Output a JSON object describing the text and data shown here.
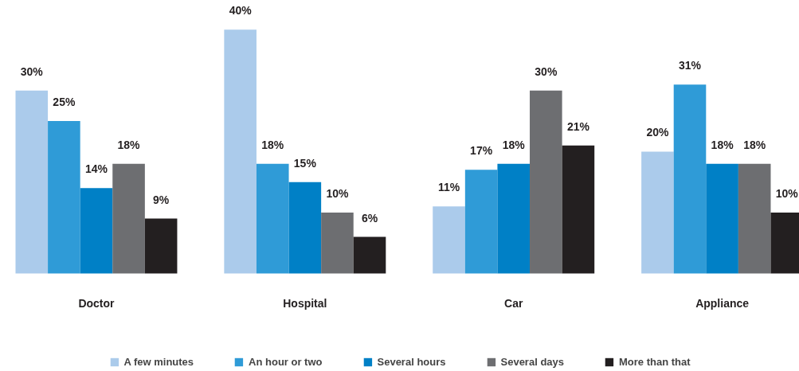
{
  "chart_data": {
    "type": "bar",
    "categories": [
      "Doctor",
      "Hospital",
      "Car",
      "Appliance"
    ],
    "legend": "bottom",
    "grid": false,
    "series": [
      {
        "name": "A few minutes",
        "color": "#abcbeb",
        "values": [
          30,
          40,
          11,
          20
        ],
        "value_labels": [
          "30%",
          "40%",
          "11%",
          "20%"
        ]
      },
      {
        "name": "An hour or two",
        "color": "#2f9bd7",
        "values": [
          25,
          18,
          17,
          31
        ],
        "value_labels": [
          "25%",
          "18%",
          "17%",
          "31%"
        ]
      },
      {
        "name": "Several hours",
        "color": "#0080c6",
        "values": [
          14,
          15,
          18,
          18
        ],
        "value_labels": [
          "14%",
          "15%",
          "18%",
          "18%"
        ]
      },
      {
        "name": "Several days",
        "color": "#6d6e71",
        "values": [
          18,
          10,
          30,
          18
        ],
        "value_labels": [
          "18%",
          "10%",
          "30%",
          "18%"
        ]
      },
      {
        "name": "More than that",
        "color": "#231f20",
        "values": [
          9,
          6,
          21,
          10
        ],
        "value_labels": [
          "9%",
          "6%",
          "21%",
          "10%"
        ]
      }
    ]
  }
}
